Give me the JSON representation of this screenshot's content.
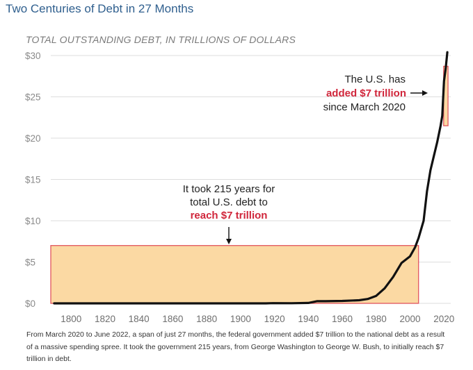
{
  "title": "Two Centuries of Debt in 27 Months",
  "caption": "From March 2020 to June 2022, a span of just 27 months, the federal government added $7 trillion to the national debt as a result of a massive spending spree. It took the government 215 years, from George Washington to George W. Bush, to initially reach $7 trillion in debt.",
  "colors": {
    "title": "#2f5f8e",
    "line": "#111111",
    "box_fill": "#fbd9a3",
    "box_stroke": "#e0555e",
    "highlight_text": "#d0263b",
    "grid": "#dddddd"
  },
  "chart_data": {
    "type": "line",
    "title": "",
    "ylabel": "TOTAL OUTSTANDING DEBT, IN TRILLIONS OF DOLLARS",
    "xlabel": "",
    "xlim": [
      1788,
      2024
    ],
    "ylim": [
      0,
      30
    ],
    "yticks": [
      0,
      5,
      10,
      15,
      20,
      25,
      30
    ],
    "ytick_labels": [
      "$0",
      "$5",
      "$10",
      "$15",
      "$20",
      "$25",
      "$30"
    ],
    "xticks": [
      1800,
      1820,
      1840,
      1860,
      1880,
      1900,
      1920,
      1940,
      1960,
      1980,
      2000,
      2020
    ],
    "grid": true,
    "series": [
      {
        "x": [
          1790,
          1800,
          1820,
          1840,
          1860,
          1865,
          1880,
          1900,
          1915,
          1919,
          1930,
          1940,
          1945,
          1950,
          1960,
          1970,
          1975,
          1980,
          1985,
          1990,
          1995,
          2000,
          2003,
          2005,
          2008,
          2010,
          2012,
          2014,
          2016,
          2018,
          2019,
          2020,
          2021,
          2022
        ],
        "y": [
          0,
          0,
          0,
          0,
          0,
          0.003,
          0.002,
          0.001,
          0.003,
          0.027,
          0.016,
          0.05,
          0.26,
          0.26,
          0.29,
          0.38,
          0.53,
          0.91,
          1.82,
          3.2,
          4.9,
          5.7,
          6.8,
          7.9,
          10.0,
          13.6,
          16.1,
          17.8,
          19.5,
          21.5,
          22.7,
          26.9,
          28.4,
          30.4
        ]
      }
    ],
    "highlights": [
      {
        "x_start": 1788,
        "x_end": 2005,
        "y_start": 0,
        "y_end": 7
      },
      {
        "x_start": 2019.8,
        "x_end": 2022.4,
        "y_start": 21.5,
        "y_end": 28.7
      }
    ],
    "annotations": [
      {
        "lines": [
          "It took 215 years for",
          "total U.S. debt to"
        ],
        "highlight": "reach $7 trillion",
        "points_to": "first box"
      },
      {
        "lines": [
          "The U.S. has",
          "since March 2020"
        ],
        "highlight": "added $7 trillion",
        "points_to": "second box"
      }
    ]
  }
}
